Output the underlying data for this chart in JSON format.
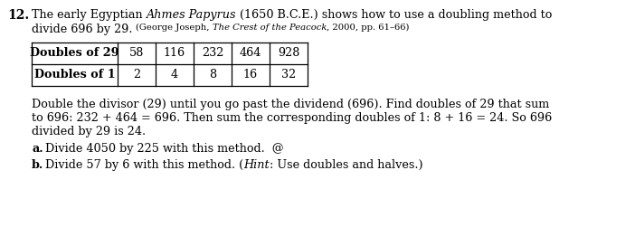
{
  "background_color": "#ffffff",
  "problem_number": "12.",
  "table_row1_header": "Doubles of 29",
  "table_row1_values": [
    "58",
    "116",
    "232",
    "464",
    "928"
  ],
  "table_row2_header": "Doubles of 1",
  "table_row2_values": [
    "2",
    "4",
    "8",
    "16",
    "32"
  ],
  "body_text_line1": "Double the divisor (29) until you go past the dividend (696). Find doubles of 29 that sum",
  "body_text_line2": "to 696: 232 + 464 = 696. Then sum the corresponding doubles of 1: 8 + 16 = 24. So 696",
  "body_text_line3": "divided by 29 is 24.",
  "part_a_label": "a.",
  "part_a_text": "Divide 4050 by 225 with this method.  @",
  "part_b_label": "b.",
  "part_b_pre": "Divide 57 by 6 with this method. (",
  "part_b_hint": "Hint",
  "part_b_post": ": Use doubles and halves.)",
  "citation": "(George Joseph, ",
  "citation_italic": "The Crest of the Peacock",
  "citation_end": ", 2000, pp. 61–66)",
  "font_size_main": 9.2,
  "font_size_number": 10.0,
  "font_size_small": 7.2,
  "fig_width": 7.02,
  "fig_height": 2.72,
  "dpi": 100
}
